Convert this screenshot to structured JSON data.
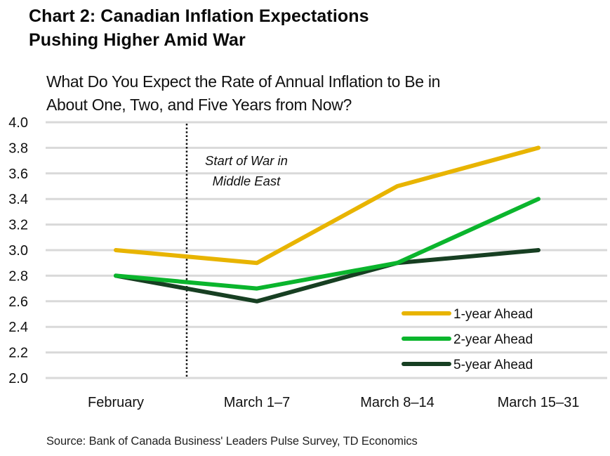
{
  "title_line1": "Chart 2: Canadian Inflation Expectations",
  "title_line2": "Pushing Higher Amid War",
  "subtitle_line1": "What Do You Expect the Rate of Annual Inflation to Be in",
  "subtitle_line2": "About One, Two, and Five Years from Now?",
  "annotation": {
    "line1": "Start of War in",
    "line2": "Middle East"
  },
  "source": "Source: Bank of Canada Business' Leaders Pulse Survey, TD Economics",
  "y_ticks": [
    "4.0",
    "3.8",
    "3.6",
    "3.4",
    "3.2",
    "3.0",
    "2.8",
    "2.6",
    "2.4",
    "2.2",
    "2.0"
  ],
  "legend": [
    {
      "label": "1-year Ahead",
      "color": "#E8B400"
    },
    {
      "label": "2-year Ahead",
      "color": "#0BB52D"
    },
    {
      "label": "5-year Ahead",
      "color": "#173F22"
    }
  ],
  "chart_data": {
    "type": "line",
    "title": "Chart 2: Canadian Inflation Expectations Pushing Higher Amid War",
    "subtitle": "What Do You Expect the Rate of Annual Inflation to Be in About One, Two, and Five Years from Now?",
    "categories": [
      "February",
      "March 1–7",
      "March 8–14",
      "March 15–31"
    ],
    "series": [
      {
        "name": "1-year Ahead",
        "color": "#E8B400",
        "values": [
          3.0,
          2.9,
          3.5,
          3.8
        ]
      },
      {
        "name": "2-year Ahead",
        "color": "#0BB52D",
        "values": [
          2.8,
          2.7,
          2.9,
          3.4
        ]
      },
      {
        "name": "5-year Ahead",
        "color": "#173F22",
        "values": [
          2.8,
          2.6,
          2.9,
          3.0
        ]
      }
    ],
    "xlabel": "",
    "ylabel": "",
    "ylim": [
      2.0,
      4.0
    ],
    "y_tick_step": 0.2,
    "grid": "horizontal",
    "legend_position": "lower right, inside plot",
    "annotations": [
      {
        "text": "Start of War in Middle East",
        "type": "vertical dotted line",
        "position": "between February and March 1–7"
      }
    ],
    "source": "Source: Bank of Canada Business' Leaders Pulse Survey, TD Economics"
  }
}
